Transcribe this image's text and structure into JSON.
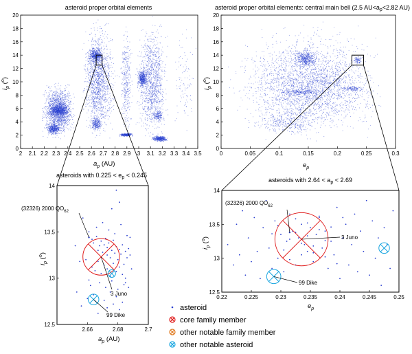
{
  "colors": {
    "asteroid": "#2a3fd0",
    "core": "#e02020",
    "other_family": "#e07a20",
    "notable": "#1aa6e0",
    "axis": "#000000"
  },
  "legend": [
    {
      "label": "asteroid",
      "marker": "dot",
      "color": "#2a3fd0"
    },
    {
      "label": "core family member",
      "marker": "circled-x",
      "color": "#e02020"
    },
    {
      "label": "other notable family member",
      "marker": "circled-x",
      "color": "#e07a20"
    },
    {
      "label": "other notable asteroid",
      "marker": "circled-x",
      "color": "#1aa6e0"
    }
  ],
  "chart_data": [
    {
      "id": "p1",
      "type": "scatter",
      "title": "asteroid proper orbital elements",
      "xlabel": "a_p (AU)",
      "ylabel": "i_p (°)",
      "xlim": [
        2,
        3.5
      ],
      "ylim": [
        0,
        20
      ],
      "xticks": [
        "2",
        "2.1",
        "2.2",
        "2.3",
        "2.4",
        "2.5",
        "2.6",
        "2.7",
        "2.8",
        "2.9",
        "3",
        "3.1",
        "3.2",
        "3.3",
        "3.4",
        "3.5"
      ],
      "yticks": [
        "0",
        "2",
        "4",
        "6",
        "8",
        "10",
        "12",
        "14",
        "16",
        "18",
        "20"
      ],
      "zoom_box": {
        "x": [
          2.64,
          2.69
        ],
        "y": [
          12.5,
          14
        ]
      },
      "series": [
        {
          "clusters": [
            {
              "x": [
                2.15,
                2.48
              ],
              "y": [
                1,
                10.5
              ],
              "weight": 1500
            },
            {
              "x": [
                2.23,
                2.42
              ],
              "y": [
                4.5,
                7
              ],
              "weight": 700
            },
            {
              "x": [
                2.2,
                2.35
              ],
              "y": [
                2,
                4
              ],
              "weight": 400
            },
            {
              "x": [
                2.5,
                2.82
              ],
              "y": [
                0,
                20
              ],
              "weight": 1400
            },
            {
              "x": [
                2.55,
                2.72
              ],
              "y": [
                12.5,
                15.5
              ],
              "weight": 500
            },
            {
              "x": [
                2.58,
                2.7
              ],
              "y": [
                2.5,
                5
              ],
              "weight": 250
            },
            {
              "x": [
                2.83,
                2.95
              ],
              "y": [
                0,
                20
              ],
              "weight": 350
            },
            {
              "x": [
                2.82,
                2.96
              ],
              "y": [
                1.8,
                2.4
              ],
              "weight": 300
            },
            {
              "x": [
                2.96,
                3.26
              ],
              "y": [
                0,
                20
              ],
              "weight": 1200
            },
            {
              "x": [
                2.98,
                3.08
              ],
              "y": [
                9,
                12
              ],
              "weight": 450
            },
            {
              "x": [
                3.1,
                3.25
              ],
              "y": [
                1,
                2
              ],
              "weight": 400
            },
            {
              "x": [
                3.1,
                3.22
              ],
              "y": [
                4,
                6
              ],
              "weight": 150
            },
            {
              "x": [
                3.26,
                3.5
              ],
              "y": [
                0,
                20
              ],
              "weight": 100
            }
          ]
        }
      ]
    },
    {
      "id": "p2",
      "type": "scatter",
      "title": "asteroid proper orbital elements: central main bell (2.5 AU<a_p<2.82 AU)",
      "xlabel": "e_p",
      "ylabel": "i_p (°)",
      "xlim": [
        0,
        0.3
      ],
      "ylim": [
        0,
        20
      ],
      "xticks": [
        "0",
        "0.05",
        "0.1",
        "0.15",
        "0.2",
        "0.25",
        "0.3"
      ],
      "yticks": [
        "0",
        "2",
        "4",
        "6",
        "8",
        "10",
        "12",
        "14",
        "16",
        "18",
        "20"
      ],
      "zoom_box": {
        "x": [
          0.225,
          0.245
        ],
        "y": [
          12.5,
          14
        ]
      },
      "series": [
        {
          "clusters": [
            {
              "x": [
                0,
                0.3
              ],
              "y": [
                0,
                20
              ],
              "weight": 1600
            },
            {
              "x": [
                0.02,
                0.28
              ],
              "y": [
                2,
                16
              ],
              "weight": 1400
            },
            {
              "x": [
                0.12,
                0.17
              ],
              "y": [
                12,
                15
              ],
              "weight": 450
            },
            {
              "x": [
                0.1,
                0.18
              ],
              "y": [
                8,
                9
              ],
              "weight": 180
            },
            {
              "x": [
                0.05,
                0.18
              ],
              "y": [
                2,
                6
              ],
              "weight": 300
            },
            {
              "x": [
                0.2,
                0.25
              ],
              "y": [
                8.5,
                9.5
              ],
              "weight": 120
            },
            {
              "x": [
                0.225,
                0.245
              ],
              "y": [
                12.5,
                14
              ],
              "weight": 80
            }
          ]
        }
      ]
    },
    {
      "id": "p3",
      "type": "scatter",
      "title": "asteroids with 0.225 < e_p < 0.245",
      "xlabel": "a_p (AU)",
      "ylabel": "i_p (°)",
      "xlim": [
        2.64,
        2.7
      ],
      "ylim": [
        12.5,
        14
      ],
      "xticks": [
        "2.66",
        "2.68",
        "2.7"
      ],
      "yticks": [
        "12.5",
        "13",
        "13.5",
        "14"
      ],
      "series": [
        {
          "name": "asteroid",
          "x": [
            2.652,
            2.655,
            2.661,
            2.663,
            2.664,
            2.666,
            2.667,
            2.668,
            2.669,
            2.67,
            2.671,
            2.672,
            2.673,
            2.673,
            2.674,
            2.675,
            2.676,
            2.677,
            2.678,
            2.679,
            2.68,
            2.681,
            2.682,
            2.683,
            2.684,
            2.685,
            2.686,
            2.687,
            2.663,
            2.665,
            2.667,
            2.669,
            2.671,
            2.673,
            2.675,
            2.677,
            2.679,
            2.681,
            2.683,
            2.685,
            2.668,
            2.672,
            2.676,
            2.68,
            2.684,
            2.666,
            2.67,
            2.674,
            2.678,
            2.682,
            2.686,
            2.688,
            2.653,
            2.656,
            2.66,
            2.662,
            2.664,
            2.671,
            2.675,
            2.679,
            2.683,
            2.687,
            2.689,
            2.657,
            2.659,
            2.661,
            2.667,
            2.673,
            2.677,
            2.681,
            2.685,
            2.688,
            2.676,
            2.679,
            2.681
          ],
          "y": [
            13.35,
            13.18,
            13.5,
            13.42,
            13.38,
            13.45,
            13.3,
            13.35,
            13.4,
            13.28,
            13.36,
            13.43,
            13.25,
            13.33,
            13.38,
            13.22,
            13.3,
            13.41,
            13.27,
            13.34,
            13.2,
            13.31,
            13.26,
            13.36,
            13.15,
            13.29,
            13.22,
            13.32,
            13.12,
            13.08,
            13.18,
            13.05,
            13.14,
            13.1,
            13.02,
            13.16,
            13.07,
            13.12,
            13.04,
            13.0,
            12.95,
            12.9,
            12.97,
            12.88,
            12.93,
            13.55,
            13.6,
            13.52,
            13.48,
            13.58,
            13.46,
            13.44,
            12.85,
            12.7,
            12.78,
            12.92,
            12.82,
            12.76,
            12.85,
            12.8,
            12.74,
            12.9,
            13.1,
            13.65,
            13.2,
            12.98,
            12.62,
            12.68,
            12.72,
            12.66,
            12.95,
            13.25,
            13.75,
            13.95,
            13.82
          ]
        }
      ],
      "highlight": [
        {
          "name": "3 Juno",
          "x": 2.669,
          "y": 13.23,
          "kind": "core",
          "r": 0.012
        },
        {
          "name": "(32326) 2000 QO62",
          "x": 2.661,
          "y": 13.44,
          "kind": "core_point"
        },
        {
          "name": "notable",
          "x": 2.676,
          "y": 13.05,
          "kind": "notable",
          "r": 0.0025
        },
        {
          "name": "99 Dike",
          "x": 2.664,
          "y": 12.77,
          "kind": "notable",
          "r": 0.0035
        }
      ]
    },
    {
      "id": "p4",
      "type": "scatter",
      "title": "asteroids with 2.64 < a_p < 2.69",
      "xlabel": "e_p",
      "ylabel": "i_p (°)",
      "xlim": [
        0.22,
        0.25
      ],
      "ylim": [
        12.5,
        14
      ],
      "xticks": [
        "0.22",
        "0.225",
        "0.23",
        "0.235",
        "0.24",
        "0.245",
        "0.25"
      ],
      "yticks": [
        "12.5",
        "13",
        "13.5",
        "14"
      ],
      "series": [
        {
          "name": "asteroid",
          "x": [
            0.221,
            0.222,
            0.2225,
            0.223,
            0.2235,
            0.224,
            0.2245,
            0.225,
            0.2255,
            0.226,
            0.2265,
            0.227,
            0.2275,
            0.228,
            0.2285,
            0.229,
            0.2295,
            0.23,
            0.2305,
            0.231,
            0.2315,
            0.232,
            0.2325,
            0.233,
            0.2335,
            0.234,
            0.2345,
            0.235,
            0.2355,
            0.236,
            0.2365,
            0.237,
            0.2375,
            0.238,
            0.2385,
            0.239,
            0.2395,
            0.24,
            0.2405,
            0.241,
            0.2415,
            0.242,
            0.2425,
            0.243,
            0.2435,
            0.244,
            0.2445,
            0.245,
            0.2455,
            0.246,
            0.2465,
            0.247,
            0.2475,
            0.248,
            0.2485,
            0.249,
            0.2315,
            0.2325,
            0.2335,
            0.2345,
            0.2355,
            0.2365,
            0.2375,
            0.2305,
            0.2295,
            0.2285,
            0.2335,
            0.2345,
            0.2355,
            0.2325,
            0.2315,
            0.2365,
            0.2375,
            0.2385,
            0.2395,
            0.2405
          ],
          "y": [
            13.2,
            12.9,
            13.5,
            13.05,
            13.7,
            12.75,
            13.3,
            12.95,
            13.6,
            13.1,
            12.7,
            13.45,
            13.85,
            13.15,
            12.85,
            13.55,
            13.0,
            13.35,
            12.8,
            13.25,
            13.65,
            13.4,
            12.9,
            13.3,
            13.5,
            13.2,
            13.1,
            13.45,
            12.95,
            13.35,
            13.6,
            13.15,
            13.4,
            12.85,
            13.25,
            13.05,
            13.75,
            12.7,
            13.3,
            13.5,
            12.9,
            13.2,
            13.65,
            12.8,
            13.4,
            13.1,
            13.85,
            12.75,
            13.55,
            13.0,
            13.3,
            12.6,
            13.45,
            13.2,
            12.85,
            13.7,
            13.28,
            13.38,
            13.22,
            13.33,
            13.18,
            13.42,
            13.26,
            13.12,
            13.48,
            13.36,
            13.05,
            13.52,
            13.08,
            13.58,
            12.98,
            13.62,
            13.02,
            13.46,
            12.92,
            13.6
          ]
        }
      ],
      "highlight": [
        {
          "name": "3 Juno",
          "x": 0.2335,
          "y": 13.28,
          "kind": "core",
          "r": 0.0045
        },
        {
          "name": "(32326) 2000 QO62",
          "x": 0.2315,
          "y": 13.38,
          "kind": "core_point"
        },
        {
          "name": "notable",
          "x": 0.2475,
          "y": 13.15,
          "kind": "notable",
          "r": 0.0009
        },
        {
          "name": "99 Dike",
          "x": 0.2288,
          "y": 12.73,
          "kind": "notable",
          "r": 0.0012
        }
      ]
    }
  ]
}
